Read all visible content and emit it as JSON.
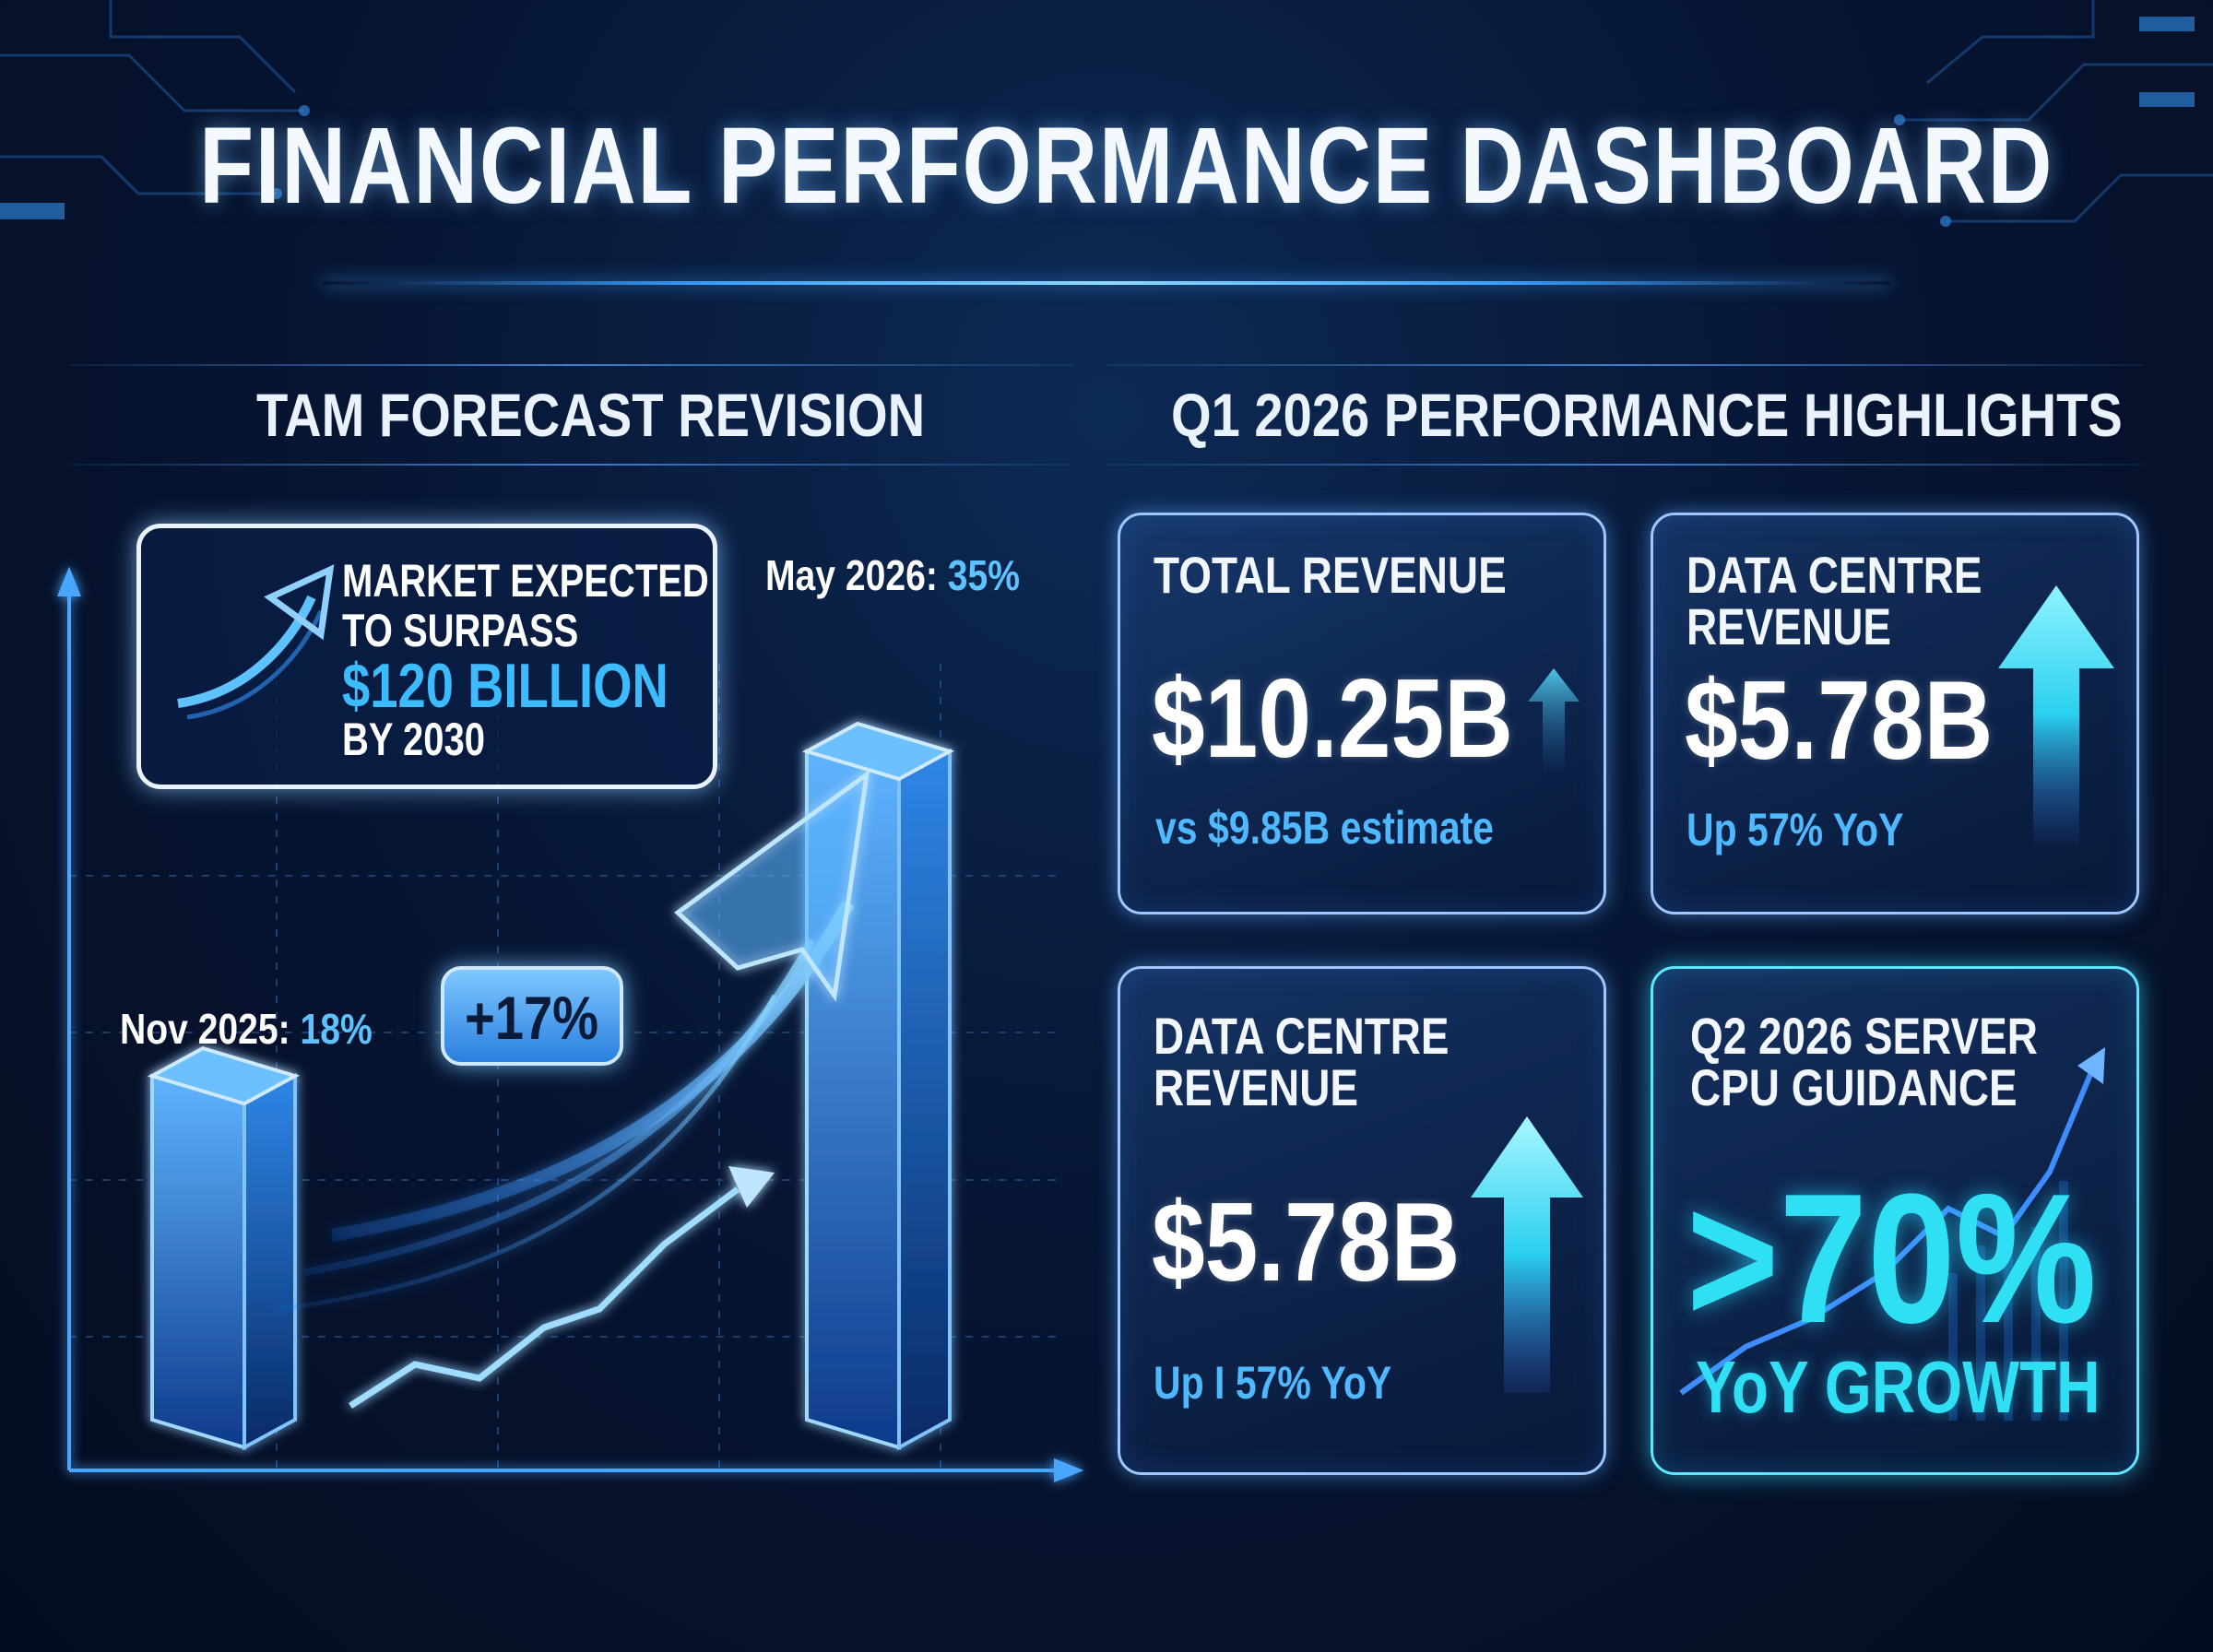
{
  "title": "FINANCIAL PERFORMANCE DASHBOARD",
  "colors": {
    "accent": "#3aa0ff",
    "cyan": "#2fe0f5",
    "text": "#ffffff"
  },
  "left_panel": {
    "heading": "TAM FORECAST REVISION",
    "callout": {
      "line1": "MARKET EXPECTED",
      "line2": "TO SURPASS",
      "highlight": "$120 BILLION",
      "line3": "BY 2030",
      "icon": "arrow-up-right-icon"
    },
    "change_badge": "+17%"
  },
  "chart_data": {
    "type": "bar",
    "categories": [
      "Nov 2025",
      "May 2026"
    ],
    "values": [
      18,
      35
    ],
    "labels": [
      {
        "prefix": "Nov 2025: ",
        "value": "18%"
      },
      {
        "prefix": "May 2026: ",
        "value": "35%"
      }
    ],
    "unit": "%",
    "ylim": [
      0,
      42
    ],
    "annotation": "+17%",
    "grid": true
  },
  "right_panel": {
    "heading": "Q1 2026 PERFORMANCE HIGHLIGHTS",
    "cards": [
      {
        "title_line1": "TOTAL REVENUE",
        "title_line2": "",
        "value": "$10.25B",
        "sub": "vs $9.85B estimate",
        "icon": "arrow-up-icon"
      },
      {
        "title_line1": "DATA CENTRE",
        "title_line2": "REVENUE",
        "value": "$5.78B",
        "sub": "Up 57% YoY",
        "icon": "arrow-up-icon"
      },
      {
        "title_line1": "DATA CENTRE",
        "title_line2": "REVENUE",
        "value": "$5.78B",
        "sub": "Up I 57% YoY",
        "icon": "arrow-up-icon"
      },
      {
        "title_line1": "Q2 2026 SERVER",
        "title_line2": "CPU GUIDANCE",
        "value": ">70%",
        "sub": "YoY GROWTH",
        "icon": "trend-line-icon"
      }
    ]
  }
}
